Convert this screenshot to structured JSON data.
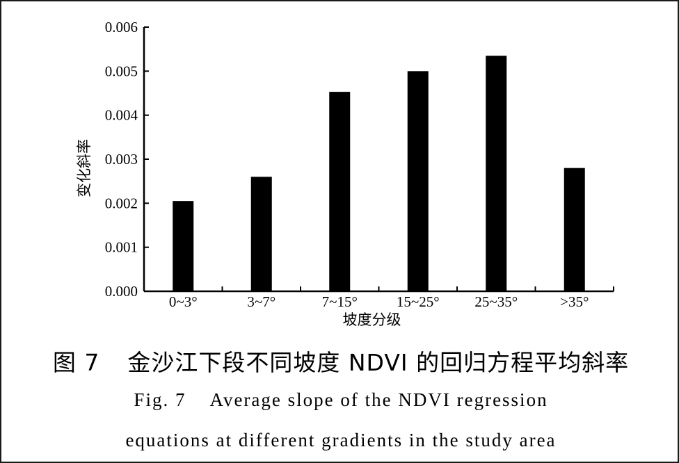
{
  "chart_data": {
    "type": "bar",
    "categories": [
      "0~3°",
      "3~7°",
      "7~15°",
      "15~25°",
      "25~35°",
      ">35°"
    ],
    "values": [
      0.00205,
      0.0026,
      0.00453,
      0.005,
      0.00535,
      0.0028
    ],
    "ylabel": "变化斜率",
    "xlabel": "坡度分级",
    "ylim": [
      0,
      0.006
    ],
    "yticks": [
      "0.000",
      "0.001",
      "0.002",
      "0.003",
      "0.004",
      "0.005",
      "0.006"
    ],
    "bar_color": "#000000",
    "grid": false,
    "legend": "none"
  },
  "caption": {
    "cn_figure_no": "图 7",
    "cn_title": "金沙江下段不同坡度 NDVI 的回归方程平均斜率",
    "en_figure_no": "Fig. 7",
    "en_line1": "Average slope of the NDVI regression",
    "en_line2": "equations at different gradients in the study area"
  }
}
